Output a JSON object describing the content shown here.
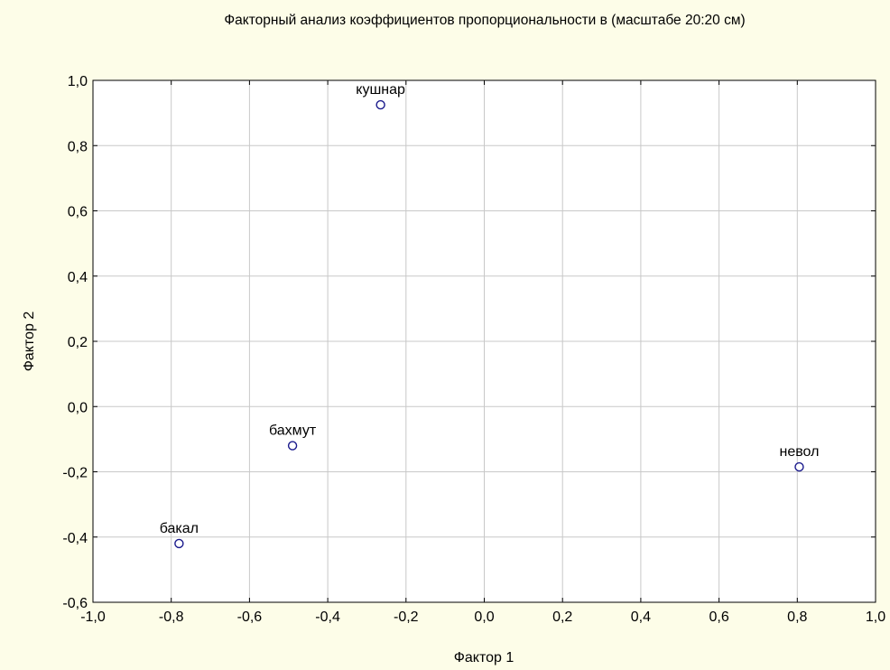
{
  "chart_data": {
    "type": "scatter",
    "title": "Факторный анализ коэффициентов пропорциональности в (масштабе 20:20 см)",
    "xlabel": "Фактор 1",
    "ylabel": "Фактор 2",
    "xlim": [
      -1.0,
      1.0
    ],
    "ylim": [
      -0.6,
      1.0
    ],
    "x_ticks": [
      -1.0,
      -0.8,
      -0.6,
      -0.4,
      -0.2,
      0.0,
      0.2,
      0.4,
      0.6,
      0.8,
      1.0
    ],
    "x_tick_labels": [
      "-1,0",
      "-0,8",
      "-0,6",
      "-0,4",
      "-0,2",
      "0,0",
      "0,2",
      "0,4",
      "0,6",
      "0,8",
      "1,0"
    ],
    "y_ticks": [
      -0.6,
      -0.4,
      -0.2,
      0.0,
      0.2,
      0.4,
      0.6,
      0.8,
      1.0
    ],
    "y_tick_labels": [
      "-0,6",
      "-0,4",
      "-0,2",
      "0,0",
      "0,2",
      "0,4",
      "0,6",
      "0,8",
      "1,0"
    ],
    "grid": true,
    "marker_color": "#1a1a8c",
    "points": [
      {
        "label": "кушнар",
        "x": -0.265,
        "y": 0.925
      },
      {
        "label": "бахмут",
        "x": -0.49,
        "y": -0.12
      },
      {
        "label": "невол",
        "x": 0.805,
        "y": -0.185
      },
      {
        "label": "бакал",
        "x": -0.78,
        "y": -0.42
      }
    ]
  }
}
